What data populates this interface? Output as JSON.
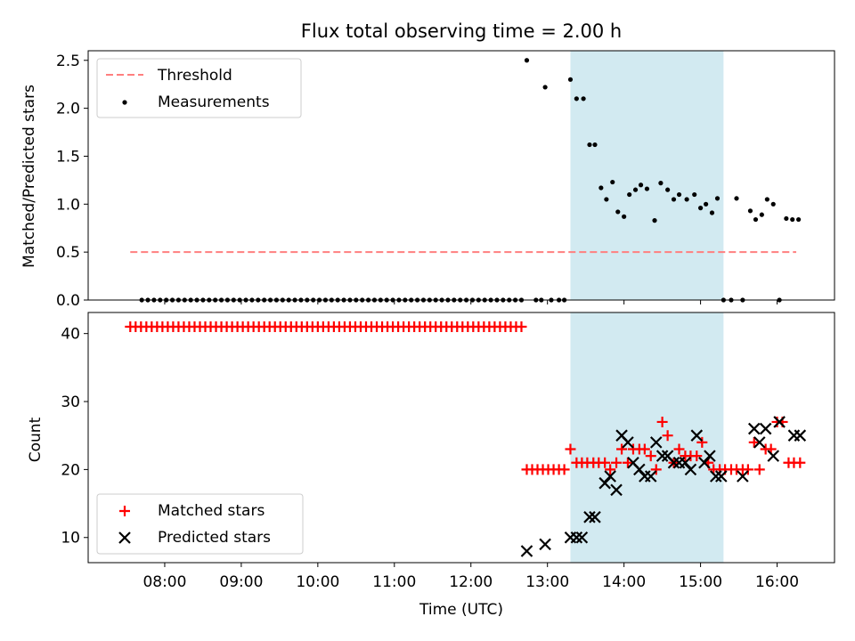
{
  "chart_data": [
    {
      "type": "scatter",
      "title": "Flux total observing time = 2.00 h",
      "xlabel": "",
      "ylabel": "Matched/Predicted stars",
      "ylim": [
        0,
        2.6
      ],
      "yticks": [
        "0.0",
        "0.5",
        "1.0",
        "1.5",
        "2.0",
        "2.5"
      ],
      "shaded_region_hours": [
        13.3,
        15.3
      ],
      "legend_position": "top-left",
      "threshold": {
        "name": "Threshold",
        "y": 0.5,
        "x": [
          7.55,
          16.25
        ],
        "color": "#ff7f7f",
        "style": "dashed"
      },
      "series": [
        {
          "name": "Measurements",
          "color": "#000000",
          "marker": "dot",
          "x": [
            7.7,
            7.78,
            7.86,
            7.94,
            8.02,
            8.1,
            8.18,
            8.26,
            8.34,
            8.42,
            8.5,
            8.58,
            8.66,
            8.74,
            8.82,
            8.9,
            8.98,
            9.06,
            9.14,
            9.22,
            9.3,
            9.38,
            9.46,
            9.54,
            9.62,
            9.7,
            9.78,
            9.86,
            9.94,
            10.02,
            10.1,
            10.18,
            10.26,
            10.34,
            10.42,
            10.5,
            10.58,
            10.66,
            10.74,
            10.82,
            10.9,
            10.98,
            11.06,
            11.14,
            11.22,
            11.3,
            11.38,
            11.46,
            11.54,
            11.62,
            11.7,
            11.78,
            11.86,
            11.94,
            12.02,
            12.1,
            12.18,
            12.26,
            12.34,
            12.42,
            12.5,
            12.58,
            12.66,
            12.73,
            12.85,
            12.92,
            12.97,
            13.05,
            13.15,
            13.22,
            13.3,
            13.38,
            13.47,
            13.55,
            13.62,
            13.7,
            13.77,
            13.85,
            13.92,
            14.0,
            14.07,
            14.15,
            14.22,
            14.3,
            14.4,
            14.48,
            14.57,
            14.65,
            14.72,
            14.82,
            14.92,
            15.0,
            15.07,
            15.15,
            15.22,
            15.3,
            15.4,
            15.47,
            15.55,
            15.65,
            15.72,
            15.8,
            15.87,
            15.95,
            16.03,
            16.12,
            16.2,
            16.28
          ],
          "y": [
            0,
            0,
            0,
            0,
            0,
            0,
            0,
            0,
            0,
            0,
            0,
            0,
            0,
            0,
            0,
            0,
            0,
            0,
            0,
            0,
            0,
            0,
            0,
            0,
            0,
            0,
            0,
            0,
            0,
            0,
            0,
            0,
            0,
            0,
            0,
            0,
            0,
            0,
            0,
            0,
            0,
            0,
            0,
            0,
            0,
            0,
            0,
            0,
            0,
            0,
            0,
            0,
            0,
            0,
            0,
            0,
            0,
            0,
            0,
            0,
            0,
            0,
            0,
            2.5,
            0,
            0,
            2.22,
            0,
            0,
            0,
            2.3,
            2.1,
            2.1,
            1.62,
            1.62,
            1.17,
            1.05,
            1.23,
            0.92,
            0.87,
            1.1,
            1.15,
            1.2,
            1.16,
            0.83,
            1.22,
            1.15,
            1.05,
            1.1,
            1.05,
            1.1,
            0.96,
            1.0,
            0.91,
            1.06,
            0,
            0,
            1.06,
            0,
            0.93,
            0.84,
            0.89,
            1.05,
            1.0,
            0,
            0.85,
            0.84,
            0.84
          ]
        }
      ]
    },
    {
      "type": "scatter",
      "title": "",
      "xlabel": "Time (UTC)",
      "ylabel": "Count",
      "ylim": [
        6.3,
        43.1
      ],
      "yticks": [
        "10",
        "20",
        "30",
        "40"
      ],
      "xlim": [
        7.0,
        16.75
      ],
      "xticks": [
        "08:00",
        "09:00",
        "10:00",
        "11:00",
        "12:00",
        "13:00",
        "14:00",
        "15:00",
        "16:00"
      ],
      "shaded_region_hours": [
        13.3,
        15.3
      ],
      "legend_position": "bottom-left",
      "series": [
        {
          "name": "Matched stars",
          "color": "#ff0000",
          "marker": "plus",
          "x": [
            7.55,
            7.62,
            7.69,
            7.76,
            7.83,
            7.9,
            7.97,
            8.04,
            8.11,
            8.18,
            8.25,
            8.32,
            8.39,
            8.46,
            8.53,
            8.6,
            8.67,
            8.74,
            8.81,
            8.88,
            8.95,
            9.02,
            9.09,
            9.16,
            9.23,
            9.3,
            9.37,
            9.44,
            9.51,
            9.58,
            9.65,
            9.72,
            9.79,
            9.86,
            9.93,
            10.0,
            10.07,
            10.14,
            10.21,
            10.28,
            10.35,
            10.42,
            10.49,
            10.56,
            10.63,
            10.7,
            10.77,
            10.84,
            10.91,
            10.98,
            11.05,
            11.12,
            11.19,
            11.26,
            11.33,
            11.4,
            11.47,
            11.54,
            11.61,
            11.68,
            11.75,
            11.82,
            11.89,
            11.96,
            12.03,
            12.1,
            12.17,
            12.24,
            12.31,
            12.38,
            12.45,
            12.52,
            12.59,
            12.66,
            12.73,
            12.8,
            12.87,
            12.94,
            13.01,
            13.08,
            13.15,
            13.22,
            13.3,
            13.38,
            13.45,
            13.52,
            13.6,
            13.67,
            13.75,
            13.82,
            13.9,
            13.97,
            14.05,
            14.12,
            14.2,
            14.27,
            14.35,
            14.42,
            14.5,
            14.57,
            14.65,
            14.72,
            14.8,
            14.87,
            14.95,
            15.02,
            15.1,
            15.17,
            15.25,
            15.32,
            15.4,
            15.47,
            15.55,
            15.62,
            15.7,
            15.77,
            15.85,
            15.92,
            16.0,
            16.07,
            16.15,
            16.22,
            16.3
          ],
          "y": [
            41,
            41,
            41,
            41,
            41,
            41,
            41,
            41,
            41,
            41,
            41,
            41,
            41,
            41,
            41,
            41,
            41,
            41,
            41,
            41,
            41,
            41,
            41,
            41,
            41,
            41,
            41,
            41,
            41,
            41,
            41,
            41,
            41,
            41,
            41,
            41,
            41,
            41,
            41,
            41,
            41,
            41,
            41,
            41,
            41,
            41,
            41,
            41,
            41,
            41,
            41,
            41,
            41,
            41,
            41,
            41,
            41,
            41,
            41,
            41,
            41,
            41,
            41,
            41,
            41,
            41,
            41,
            41,
            41,
            41,
            41,
            41,
            41,
            41,
            20,
            20,
            20,
            20,
            20,
            20,
            20,
            20,
            23,
            21,
            21,
            21,
            21,
            21,
            21,
            20,
            21,
            23,
            21,
            23,
            23,
            23,
            22,
            20,
            27,
            25,
            21,
            23,
            22,
            22,
            22,
            24,
            21,
            20,
            20,
            20,
            20,
            20,
            20,
            20,
            24,
            20,
            23,
            23,
            27,
            27,
            21,
            21,
            21
          ]
        },
        {
          "name": "Predicted stars",
          "color": "#000000",
          "marker": "x",
          "x": [
            12.73,
            12.97,
            13.3,
            13.38,
            13.45,
            13.55,
            13.62,
            13.75,
            13.82,
            13.9,
            13.97,
            14.05,
            14.12,
            14.2,
            14.27,
            14.35,
            14.42,
            14.5,
            14.57,
            14.65,
            14.72,
            14.8,
            14.87,
            14.95,
            15.05,
            15.12,
            15.2,
            15.27,
            15.55,
            15.7,
            15.77,
            15.85,
            15.95,
            16.03,
            16.22,
            16.3
          ],
          "y": [
            8,
            9,
            10,
            10,
            10,
            13,
            13,
            18,
            19,
            17,
            25,
            24,
            21,
            20,
            19,
            19,
            24,
            22,
            22,
            21,
            21,
            21,
            20,
            25,
            21,
            22,
            19,
            19,
            19,
            26,
            24,
            26,
            22,
            27,
            25,
            25
          ]
        }
      ]
    }
  ]
}
